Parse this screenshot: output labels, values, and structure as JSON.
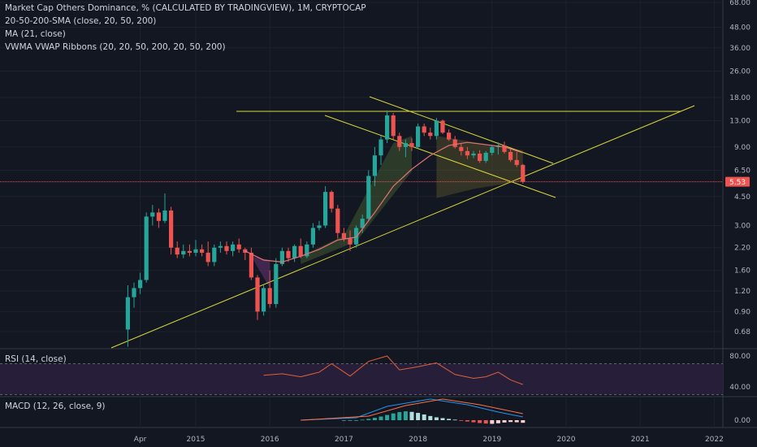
{
  "legend": {
    "title": "Market Cap Others Dominance, % (CALCULATED BY TRADINGVIEW), 1M, CRYPTOCAP",
    "sma": "20-50-200-SMA (close, 20, 50, 200)",
    "ma": "MA (21, close)",
    "vwma": "VWMA VWAP Ribbons (20, 20, 50, 200, 20, 50, 200)",
    "rsi": "RSI (14, close)",
    "macd": "MACD (12, 26, close, 9)"
  },
  "colors": {
    "background": "#131722",
    "up": "#26a69a",
    "down": "#ef5350",
    "trendline": "#d8d83a",
    "ma_line": "#e57373",
    "rsi_line": "#e0603a",
    "rsi_band": "#2a1f3d"
  },
  "price_badge": "5.53",
  "chart_data": [
    {
      "type": "candlestick",
      "scale": "log",
      "y_ticks": [
        "68.00",
        "48.00",
        "36.00",
        "26.00",
        "18.00",
        "13.00",
        "9.00",
        "6.50",
        "4.50",
        "3.00",
        "2.20",
        "1.60",
        "1.20",
        "0.90",
        "0.68"
      ],
      "x_ticks": [
        "Apr",
        "2015",
        "2016",
        "2017",
        "2018",
        "2019",
        "2020",
        "2021",
        "2022"
      ],
      "last_value": 5.53,
      "candles": [
        {
          "date": "2014-02",
          "o": 0.7,
          "h": 1.3,
          "l": 0.55,
          "c": 1.1
        },
        {
          "date": "2014-03",
          "o": 1.1,
          "h": 1.35,
          "l": 0.95,
          "c": 1.25
        },
        {
          "date": "2014-04",
          "o": 1.25,
          "h": 1.55,
          "l": 1.15,
          "c": 1.4
        },
        {
          "date": "2014-05",
          "o": 1.4,
          "h": 3.6,
          "l": 1.35,
          "c": 3.4
        },
        {
          "date": "2014-06",
          "o": 3.4,
          "h": 4.0,
          "l": 3.0,
          "c": 3.6
        },
        {
          "date": "2014-07",
          "o": 3.6,
          "h": 3.8,
          "l": 2.9,
          "c": 3.2
        },
        {
          "date": "2014-08",
          "o": 3.2,
          "h": 4.7,
          "l": 3.1,
          "c": 3.7
        },
        {
          "date": "2014-09",
          "o": 3.7,
          "h": 3.9,
          "l": 2.0,
          "c": 2.2
        },
        {
          "date": "2014-10",
          "o": 2.2,
          "h": 2.4,
          "l": 1.9,
          "c": 2.0
        },
        {
          "date": "2014-11",
          "o": 2.0,
          "h": 2.3,
          "l": 1.9,
          "c": 2.1
        },
        {
          "date": "2014-12",
          "o": 2.1,
          "h": 2.3,
          "l": 1.95,
          "c": 2.05
        },
        {
          "date": "2015-01",
          "o": 2.05,
          "h": 2.45,
          "l": 1.95,
          "c": 2.15
        },
        {
          "date": "2015-02",
          "o": 2.15,
          "h": 2.3,
          "l": 1.95,
          "c": 2.05
        },
        {
          "date": "2015-03",
          "o": 2.05,
          "h": 2.4,
          "l": 1.7,
          "c": 1.8
        },
        {
          "date": "2015-04",
          "o": 1.8,
          "h": 2.3,
          "l": 1.7,
          "c": 2.2
        },
        {
          "date": "2015-05",
          "o": 2.2,
          "h": 2.4,
          "l": 2.05,
          "c": 2.25
        },
        {
          "date": "2015-06",
          "o": 2.25,
          "h": 2.4,
          "l": 2.0,
          "c": 2.1
        },
        {
          "date": "2015-07",
          "o": 2.1,
          "h": 2.4,
          "l": 1.95,
          "c": 2.3
        },
        {
          "date": "2015-08",
          "o": 2.3,
          "h": 2.5,
          "l": 2.05,
          "c": 2.15
        },
        {
          "date": "2015-09",
          "o": 2.15,
          "h": 2.2,
          "l": 1.85,
          "c": 2.05
        },
        {
          "date": "2015-10",
          "o": 2.05,
          "h": 2.2,
          "l": 1.4,
          "c": 1.45
        },
        {
          "date": "2015-11",
          "o": 1.45,
          "h": 1.5,
          "l": 0.8,
          "c": 0.9
        },
        {
          "date": "2015-12",
          "o": 0.9,
          "h": 1.3,
          "l": 0.85,
          "c": 1.25
        },
        {
          "date": "2016-01",
          "o": 1.25,
          "h": 1.6,
          "l": 0.95,
          "c": 1.0
        },
        {
          "date": "2016-02",
          "o": 1.0,
          "h": 1.9,
          "l": 0.95,
          "c": 1.75
        },
        {
          "date": "2016-03",
          "o": 1.75,
          "h": 2.2,
          "l": 1.7,
          "c": 2.1
        },
        {
          "date": "2016-04",
          "o": 2.1,
          "h": 2.2,
          "l": 1.8,
          "c": 1.9
        },
        {
          "date": "2016-05",
          "o": 1.9,
          "h": 2.3,
          "l": 1.8,
          "c": 2.25
        },
        {
          "date": "2016-06",
          "o": 2.25,
          "h": 2.5,
          "l": 1.9,
          "c": 1.95
        },
        {
          "date": "2016-07",
          "o": 1.95,
          "h": 2.4,
          "l": 1.9,
          "c": 2.3
        },
        {
          "date": "2016-08",
          "o": 2.3,
          "h": 3.1,
          "l": 2.2,
          "c": 2.9
        },
        {
          "date": "2016-09",
          "o": 2.9,
          "h": 3.2,
          "l": 2.8,
          "c": 3.0
        },
        {
          "date": "2016-10",
          "o": 3.0,
          "h": 5.2,
          "l": 2.9,
          "c": 4.8
        },
        {
          "date": "2016-11",
          "o": 4.8,
          "h": 4.9,
          "l": 3.6,
          "c": 3.8
        },
        {
          "date": "2016-12",
          "o": 3.8,
          "h": 4.0,
          "l": 2.5,
          "c": 2.7
        },
        {
          "date": "2017-01",
          "o": 2.7,
          "h": 2.9,
          "l": 2.4,
          "c": 2.5
        },
        {
          "date": "2017-02",
          "o": 2.5,
          "h": 2.8,
          "l": 2.1,
          "c": 2.3
        },
        {
          "date": "2017-03",
          "o": 2.3,
          "h": 3.0,
          "l": 2.2,
          "c": 2.9
        },
        {
          "date": "2017-04",
          "o": 2.9,
          "h": 3.5,
          "l": 2.7,
          "c": 3.3
        },
        {
          "date": "2017-05",
          "o": 3.3,
          "h": 6.5,
          "l": 3.2,
          "c": 6.0
        },
        {
          "date": "2017-06",
          "o": 6.0,
          "h": 9.0,
          "l": 5.2,
          "c": 8.0
        },
        {
          "date": "2017-07",
          "o": 8.0,
          "h": 10.5,
          "l": 7.0,
          "c": 10.0
        },
        {
          "date": "2017-08",
          "o": 10.0,
          "h": 15.0,
          "l": 9.5,
          "c": 14.0
        },
        {
          "date": "2017-09",
          "o": 14.0,
          "h": 14.5,
          "l": 10.0,
          "c": 10.5
        },
        {
          "date": "2017-10",
          "o": 10.5,
          "h": 11.0,
          "l": 8.5,
          "c": 9.0
        },
        {
          "date": "2017-11",
          "o": 9.0,
          "h": 10.0,
          "l": 7.8,
          "c": 9.5
        },
        {
          "date": "2017-12",
          "o": 9.5,
          "h": 10.2,
          "l": 8.5,
          "c": 9.0
        },
        {
          "date": "2018-01",
          "o": 9.0,
          "h": 12.5,
          "l": 8.8,
          "c": 12.0
        },
        {
          "date": "2018-02",
          "o": 12.0,
          "h": 12.5,
          "l": 10.5,
          "c": 11.0
        },
        {
          "date": "2018-03",
          "o": 11.0,
          "h": 11.8,
          "l": 10.0,
          "c": 10.5
        },
        {
          "date": "2018-04",
          "o": 10.5,
          "h": 13.5,
          "l": 10.0,
          "c": 13.0
        },
        {
          "date": "2018-05",
          "o": 13.0,
          "h": 13.2,
          "l": 10.8,
          "c": 11.0
        },
        {
          "date": "2018-06",
          "o": 11.0,
          "h": 11.5,
          "l": 9.8,
          "c": 10.0
        },
        {
          "date": "2018-07",
          "o": 10.0,
          "h": 10.5,
          "l": 8.8,
          "c": 9.0
        },
        {
          "date": "2018-08",
          "o": 9.0,
          "h": 9.5,
          "l": 8.0,
          "c": 8.5
        },
        {
          "date": "2018-09",
          "o": 8.5,
          "h": 9.0,
          "l": 7.6,
          "c": 8.0
        },
        {
          "date": "2018-10",
          "o": 8.0,
          "h": 8.5,
          "l": 7.7,
          "c": 8.2
        },
        {
          "date": "2018-11",
          "o": 8.2,
          "h": 8.6,
          "l": 7.2,
          "c": 7.4
        },
        {
          "date": "2018-12",
          "o": 7.4,
          "h": 8.5,
          "l": 7.2,
          "c": 8.3
        },
        {
          "date": "2019-01",
          "o": 8.3,
          "h": 9.2,
          "l": 8.0,
          "c": 9.0
        },
        {
          "date": "2019-02",
          "o": 9.0,
          "h": 9.6,
          "l": 8.1,
          "c": 9.2
        },
        {
          "date": "2019-03",
          "o": 9.2,
          "h": 9.7,
          "l": 8.2,
          "c": 8.4
        },
        {
          "date": "2019-04",
          "o": 8.4,
          "h": 8.8,
          "l": 7.3,
          "c": 7.5
        },
        {
          "date": "2019-05",
          "o": 7.5,
          "h": 8.4,
          "l": 6.8,
          "c": 7.0
        },
        {
          "date": "2019-06",
          "o": 7.0,
          "h": 7.1,
          "l": 5.4,
          "c": 5.53
        }
      ],
      "moving_average": [
        {
          "date": "2015-09",
          "v": 2.1
        },
        {
          "date": "2015-12",
          "v": 1.85
        },
        {
          "date": "2016-03",
          "v": 1.8
        },
        {
          "date": "2016-06",
          "v": 1.95
        },
        {
          "date": "2016-09",
          "v": 2.15
        },
        {
          "date": "2016-12",
          "v": 2.45
        },
        {
          "date": "2017-03",
          "v": 2.55
        },
        {
          "date": "2017-06",
          "v": 3.6
        },
        {
          "date": "2017-09",
          "v": 5.2
        },
        {
          "date": "2017-12",
          "v": 6.6
        },
        {
          "date": "2018-03",
          "v": 8.0
        },
        {
          "date": "2018-06",
          "v": 9.2
        },
        {
          "date": "2018-09",
          "v": 9.6
        },
        {
          "date": "2018-12",
          "v": 9.3
        },
        {
          "date": "2019-03",
          "v": 9.0
        },
        {
          "date": "2019-06",
          "v": 8.3
        }
      ]
    },
    {
      "type": "line",
      "title": "RSI (14, close)",
      "y_ticks": [
        "80.00",
        "40.00"
      ],
      "points": [
        {
          "date": "2015-12",
          "v": 55
        },
        {
          "date": "2016-03",
          "v": 57
        },
        {
          "date": "2016-06",
          "v": 53
        },
        {
          "date": "2016-09",
          "v": 59
        },
        {
          "date": "2016-11",
          "v": 70
        },
        {
          "date": "2017-02",
          "v": 54
        },
        {
          "date": "2017-05",
          "v": 73
        },
        {
          "date": "2017-08",
          "v": 85
        },
        {
          "date": "2017-10",
          "v": 62
        },
        {
          "date": "2018-01",
          "v": 66
        },
        {
          "date": "2018-04",
          "v": 71
        },
        {
          "date": "2018-07",
          "v": 56
        },
        {
          "date": "2018-10",
          "v": 51
        },
        {
          "date": "2018-12",
          "v": 53
        },
        {
          "date": "2019-02",
          "v": 59
        },
        {
          "date": "2019-04",
          "v": 49
        },
        {
          "date": "2019-06",
          "v": 43
        }
      ]
    },
    {
      "type": "bar",
      "title": "MACD (12, 26, close, 9)",
      "y_ticks": [
        "0.00"
      ]
    }
  ]
}
